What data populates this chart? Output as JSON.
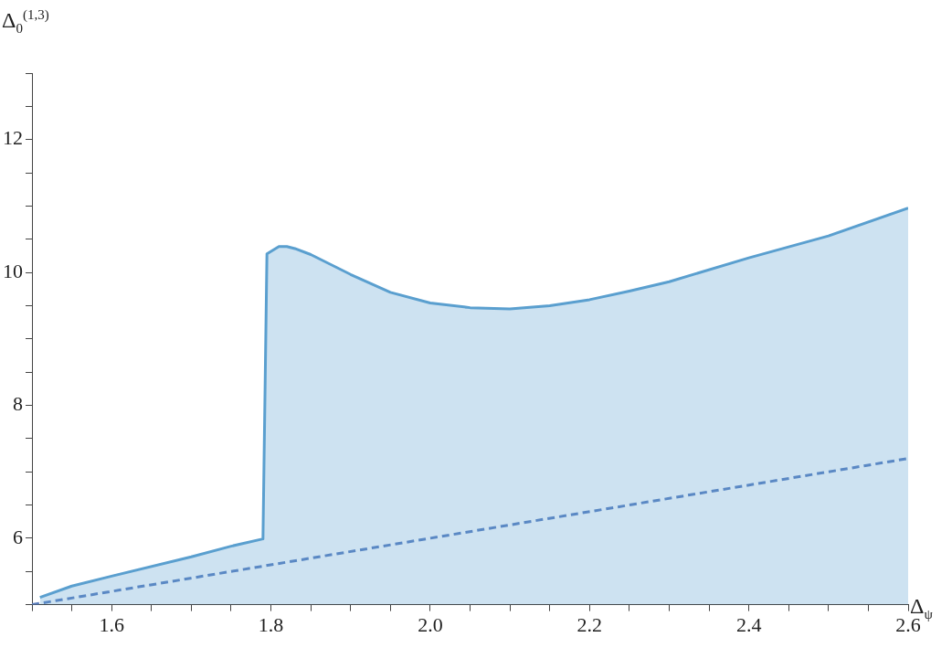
{
  "chart_data": {
    "type": "area",
    "xlabel": "Δ$_{ψ}$",
    "ylabel": "Δ$_{0}$$^{(1,3)}$",
    "xlim": [
      1.5,
      2.6
    ],
    "ylim": [
      5,
      13
    ],
    "xticks": [
      {
        "value": 1.5,
        "label": null
      },
      {
        "value": 1.55,
        "label": null
      },
      "1.6",
      {
        "value": 1.65,
        "label": null
      },
      {
        "value": 1.7,
        "label": null
      },
      {
        "value": 1.75,
        "label": null
      },
      1.8,
      {
        "value": 1.85,
        "label": null
      },
      {
        "value": 1.9,
        "label": null
      },
      {
        "value": 1.95,
        "label": null
      },
      {
        "value": 2.0,
        "label": "2.0"
      },
      {
        "value": 2.05,
        "label": null
      },
      {
        "value": 2.1,
        "label": null
      },
      {
        "value": 2.15,
        "label": null
      },
      2.2,
      {
        "value": 2.25,
        "label": null
      },
      {
        "value": 2.3,
        "label": null
      },
      {
        "value": 2.35,
        "label": null
      },
      2.4,
      {
        "value": 2.45,
        "label": null
      },
      {
        "value": 2.5,
        "label": null
      },
      {
        "value": 2.55,
        "label": null
      },
      2.6
    ],
    "yticks": [
      {
        "value": 5,
        "label": null
      },
      {
        "value": 5.5,
        "label": null
      },
      6,
      {
        "value": 6.5,
        "label": null
      },
      {
        "value": 7,
        "label": null
      },
      {
        "value": 7.5,
        "label": null
      },
      8,
      {
        "value": 8.5,
        "label": null
      },
      {
        "value": 9,
        "label": null
      },
      {
        "value": 9.5,
        "label": null
      },
      10,
      {
        "value": 10.5,
        "label": null
      },
      {
        "value": 11,
        "label": null
      },
      {
        "value": 11.5,
        "label": null
      },
      12,
      {
        "value": 12.5,
        "label": null
      },
      {
        "value": 13,
        "label": null
      }
    ],
    "grid": false,
    "legend": false,
    "marker": "none",
    "series": [
      {
        "type": "area",
        "color": "#5a9fcf",
        "line_style": "solid",
        "x": [
          1.51,
          1.55,
          1.6,
          1.7,
          1.75,
          1.79,
          1.795,
          1.81,
          1.82,
          1.83,
          1.85,
          1.9,
          1.95,
          2.0,
          2.05,
          2.1,
          2.15,
          2.2,
          2.25,
          2.3,
          2.4,
          2.5,
          2.6
        ],
        "values": [
          5.11,
          5.28,
          5.43,
          5.72,
          5.88,
          5.99,
          10.28,
          10.39,
          10.39,
          10.36,
          10.27,
          9.97,
          9.7,
          9.54,
          9.47,
          9.45,
          9.5,
          9.59,
          9.72,
          9.86,
          10.22,
          10.55,
          10.97
        ]
      },
      {
        "type": "line",
        "color": "#5b7fbf",
        "line_style": "dashed",
        "x": [
          1.5,
          2.6
        ],
        "values": [
          5.0,
          7.2
        ]
      }
    ]
  }
}
